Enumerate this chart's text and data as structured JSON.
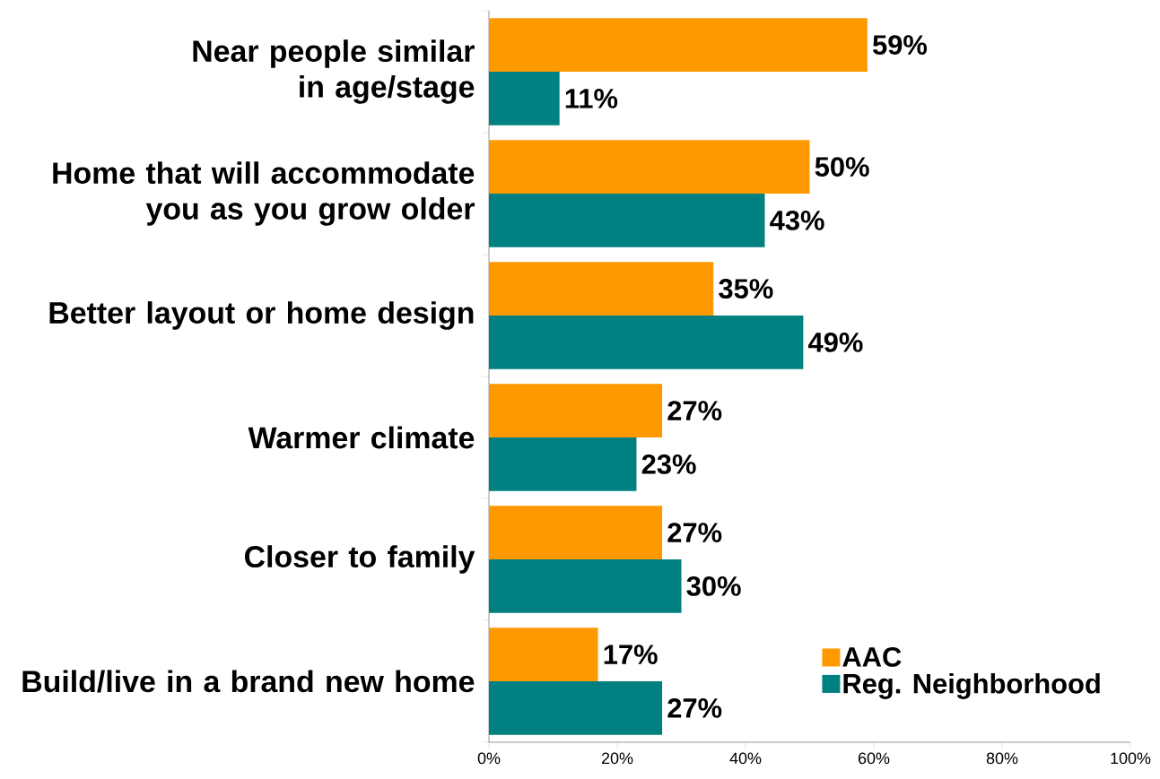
{
  "chart_data": {
    "type": "bar",
    "orientation": "horizontal",
    "categories": [
      "Near people similar in age/stage",
      "Home that will accommodate you as you grow older",
      "Better layout or home design",
      "Warmer climate",
      "Closer to family",
      "Build/live in a brand new home"
    ],
    "series": [
      {
        "name": "AAC",
        "color": "#ff9900",
        "values": [
          59,
          50,
          35,
          27,
          27,
          17
        ],
        "value_labels": [
          "59%",
          "50%",
          "35%",
          "27%",
          "27%",
          "17%"
        ]
      },
      {
        "name": "Reg. Neighborhood",
        "color": "#008080",
        "values": [
          11,
          43,
          49,
          23,
          30,
          27
        ],
        "value_labels": [
          "11%",
          "43%",
          "49%",
          "23%",
          "30%",
          "27%"
        ]
      }
    ],
    "xlim": [
      0,
      100
    ],
    "xticks": [
      {
        "value": 0,
        "label": "0%"
      },
      {
        "value": 20,
        "label": "20%"
      },
      {
        "value": 40,
        "label": "40%"
      },
      {
        "value": 60,
        "label": "60%"
      },
      {
        "value": 80,
        "label": "80%"
      },
      {
        "value": 100,
        "label": "100%"
      }
    ],
    "legend": "bottom right"
  }
}
